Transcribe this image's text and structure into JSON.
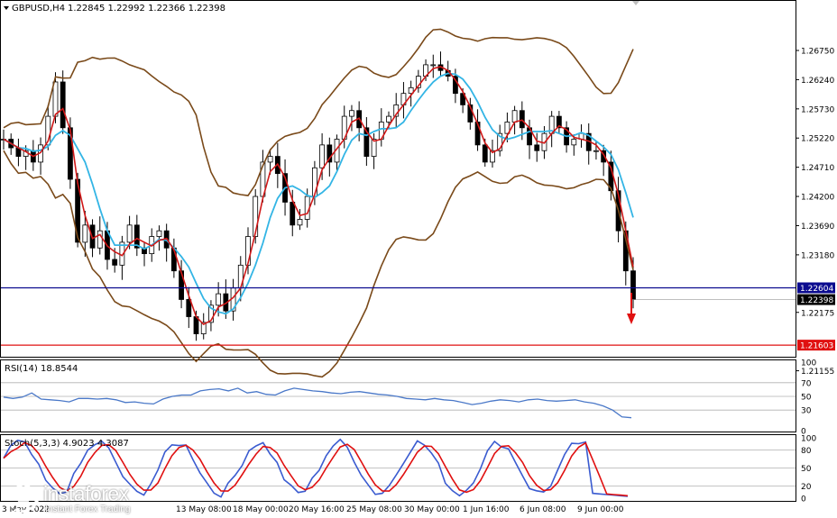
{
  "header": {
    "symbol": "GBPUSD,H4",
    "quote": "1.22845 1.22992 1.22366 1.22398"
  },
  "chart_data": [
    {
      "type": "candlestick",
      "symbol": "GBPUSD",
      "timeframe": "H4",
      "ylim": [
        1.214,
        1.276
      ],
      "y_ticks": [
        "1.26750",
        "1.26240",
        "1.25730",
        "1.25220",
        "1.24710",
        "1.24200",
        "1.23690",
        "1.23180",
        "1.22175",
        "1.21155"
      ],
      "x_labels": [
        "3 May 2022",
        "",
        "13 May 08:00",
        "18 May 00:00",
        "20 May 16:00",
        "25 May 08:00",
        "30 May 00:00",
        "1 Jun 16:00",
        "6 Jun 08:00",
        "9 Jun 00:00"
      ],
      "current_price": "1.22398",
      "levels": [
        {
          "label": "1.22604",
          "value": 1.22604,
          "color": "#0b0b8f"
        },
        {
          "label": "1.21603",
          "value": 1.21603,
          "color": "#e01010"
        }
      ],
      "close_path": [
        1.252,
        1.2505,
        1.249,
        1.25,
        1.248,
        1.251,
        1.256,
        1.262,
        1.254,
        1.245,
        1.234,
        1.237,
        1.233,
        1.236,
        1.231,
        1.23,
        1.234,
        1.237,
        1.233,
        1.232,
        1.235,
        1.236,
        1.233,
        1.229,
        1.224,
        1.221,
        1.218,
        1.22,
        1.223,
        1.225,
        1.222,
        1.226,
        1.23,
        1.235,
        1.242,
        1.248,
        1.249,
        1.246,
        1.241,
        1.237,
        1.238,
        1.242,
        1.247,
        1.251,
        1.248,
        1.252,
        1.256,
        1.257,
        1.254,
        1.249,
        1.252,
        1.255,
        1.256,
        1.258,
        1.26,
        1.261,
        1.263,
        1.265,
        1.265,
        1.264,
        1.263,
        1.26,
        1.258,
        1.255,
        1.251,
        1.248,
        1.25,
        1.253,
        1.255,
        1.257,
        1.254,
        1.251,
        1.25,
        1.253,
        1.256,
        1.254,
        1.251,
        1.252,
        1.253,
        1.25,
        1.25,
        1.248,
        1.243,
        1.236,
        1.229,
        1.224
      ],
      "series": [
        {
          "name": "MA fast",
          "color": "#d01818",
          "values": []
        },
        {
          "name": "MA slow",
          "color": "#33b5e5",
          "values": []
        },
        {
          "name": "Bollinger Bands",
          "color": "#7a4a1a",
          "values": []
        }
      ]
    },
    {
      "type": "line",
      "label": "RSI(14) 18.8544",
      "ylim": [
        0,
        100
      ],
      "levels": [
        70,
        50,
        30
      ],
      "y_ticks": [
        "100",
        "70",
        "50",
        "30",
        "0"
      ],
      "values": [
        49,
        47,
        49,
        55,
        46,
        45,
        44,
        42,
        47,
        47,
        46,
        47,
        45,
        41,
        42,
        40,
        39,
        46,
        50,
        52,
        52,
        58,
        60,
        61,
        58,
        62,
        55,
        57,
        53,
        52,
        58,
        62,
        60,
        58,
        57,
        55,
        54,
        56,
        57,
        55,
        53,
        52,
        50,
        47,
        46,
        45,
        47,
        45,
        44,
        41,
        38,
        40,
        43,
        45,
        44,
        42,
        45,
        46,
        44,
        43,
        44,
        45,
        42,
        40,
        36,
        30,
        20,
        18.85
      ],
      "color": "#4a78c8"
    },
    {
      "type": "line",
      "label": "Stoch(5,3,3) 4.9023 4.3087",
      "ylim": [
        0,
        100
      ],
      "levels": [
        80,
        50,
        20
      ],
      "y_ticks": [
        "100",
        "80",
        "50",
        "20",
        "0"
      ],
      "series": [
        {
          "name": "%K",
          "color": "#3a5bd0",
          "values": []
        },
        {
          "name": "%D",
          "color": "#e01010",
          "values": []
        }
      ]
    }
  ],
  "watermark": {
    "brand": "instaforex",
    "tagline": "Instant Forex Trading"
  }
}
